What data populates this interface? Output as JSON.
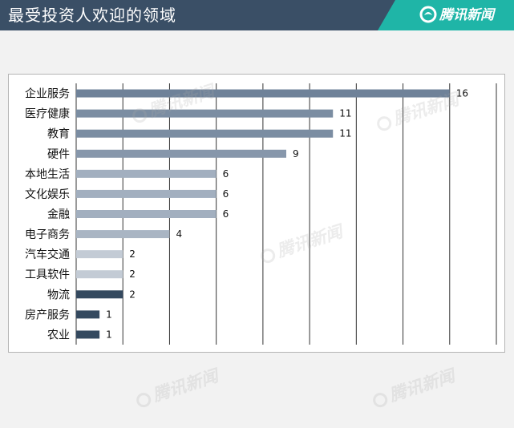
{
  "header": {
    "title": "最受投资人欢迎的领域"
  },
  "brand": {
    "name": "腾讯新闻",
    "color": "#1fb5a7"
  },
  "watermark_text": "腾讯新闻",
  "chart_data": {
    "type": "bar",
    "orientation": "horizontal",
    "categories": [
      "企业服务",
      "医疗健康",
      "教育",
      "硬件",
      "本地生活",
      "文化娱乐",
      "金融",
      "电子商务",
      "汽车交通",
      "工具软件",
      "物流",
      "房产服务",
      "农业"
    ],
    "values": [
      16,
      11,
      11,
      9,
      6,
      6,
      6,
      4,
      2,
      2,
      2,
      1,
      1
    ],
    "bar_colors": [
      "#6f8299",
      "#7b8da2",
      "#7b8da2",
      "#8797ab",
      "#a2afbf",
      "#a2afbf",
      "#a2afbf",
      "#a9b5c3",
      "#c3cbd5",
      "#c3cbd5",
      "#34495f",
      "#34495f",
      "#34495f"
    ],
    "xlim": [
      0,
      18
    ],
    "grid": true,
    "data_labels": true
  }
}
